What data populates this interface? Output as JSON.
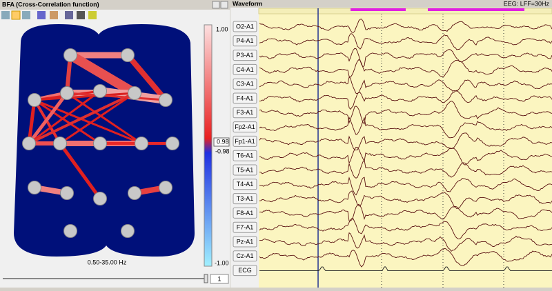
{
  "left_panel": {
    "title": "BFA (Cross-Correlation function)",
    "colorbar": {
      "max_label": "1.00",
      "threshold_input": "0.98",
      "neg_threshold_label": "-0.98",
      "min_label": "-1.00"
    },
    "frequency_range": "0.50-35.00 Hz",
    "slider_value": "1"
  },
  "right_panel": {
    "title": "Waveform",
    "filter_info": "EEG: LFF=30Hz",
    "channels": [
      "O2-A1",
      "P4-A1",
      "P3-A1",
      "C4-A1",
      "C3-A1",
      "F4-A1",
      "F3-A1",
      "Fp2-A1",
      "Fp1-A1",
      "T6-A1",
      "T5-A1",
      "T4-A1",
      "T3-A1",
      "F8-A1",
      "F7-A1",
      "Pz-A1",
      "Cz-A1",
      "ECG"
    ]
  }
}
